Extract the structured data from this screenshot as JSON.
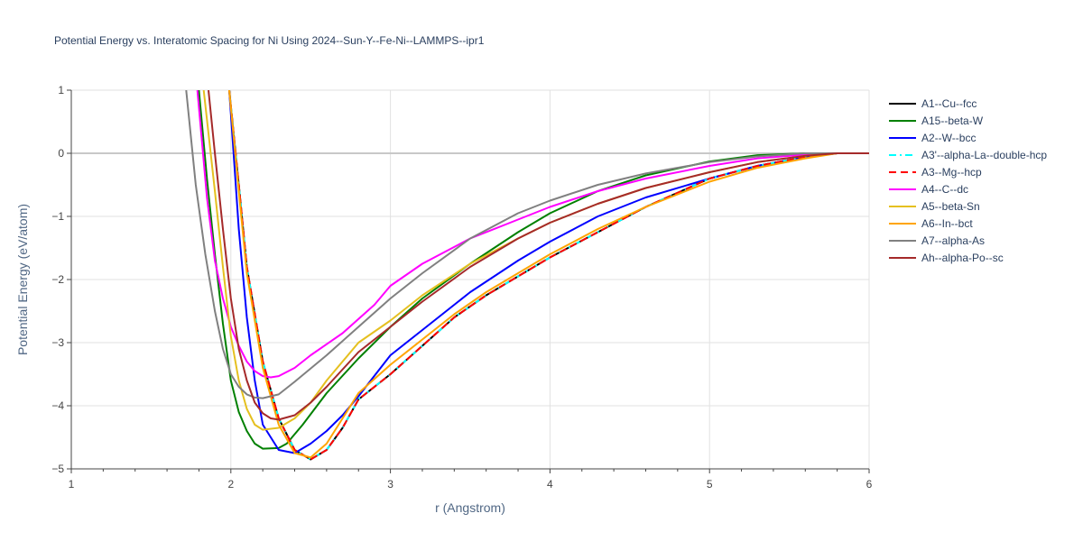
{
  "chart_data": {
    "type": "line",
    "title": "Potential Energy vs. Interatomic Spacing for Ni Using 2024--Sun-Y--Fe-Ni--LAMMPS--ipr1",
    "xlabel": "r (Angstrom)",
    "ylabel": "Potential Energy (eV/atom)",
    "xlim": [
      1,
      6
    ],
    "ylim": [
      -5,
      1
    ],
    "xticks": [
      1,
      2,
      3,
      4,
      5,
      6
    ],
    "yticks": [
      1,
      0,
      -1,
      -2,
      -3,
      -4,
      -5
    ],
    "ytick_labels": [
      "1",
      "0",
      "−1",
      "−2",
      "−3",
      "−4",
      "−5"
    ],
    "grid": true,
    "legend_position": "right",
    "series": [
      {
        "name": "A1--Cu--fcc",
        "color": "#000000",
        "dash": "solid",
        "x": [
          1.99,
          2.05,
          2.1,
          2.2,
          2.3,
          2.4,
          2.5,
          2.6,
          2.7,
          2.8,
          3.0,
          3.2,
          3.4,
          3.6,
          3.8,
          4.0,
          4.3,
          4.6,
          5.0,
          5.3,
          5.6,
          5.8,
          6.0
        ],
        "y": [
          1.0,
          -0.5,
          -1.8,
          -3.3,
          -4.2,
          -4.7,
          -4.85,
          -4.7,
          -4.35,
          -3.9,
          -3.5,
          -3.05,
          -2.6,
          -2.25,
          -1.95,
          -1.65,
          -1.25,
          -0.85,
          -0.4,
          -0.2,
          -0.06,
          0.0,
          0.0
        ]
      },
      {
        "name": "A15--beta-W",
        "color": "#008000",
        "dash": "solid",
        "x": [
          1.8,
          1.85,
          1.9,
          1.95,
          2.0,
          2.05,
          2.1,
          2.15,
          2.2,
          2.3,
          2.35,
          2.45,
          2.6,
          2.8,
          3.0,
          3.2,
          3.5,
          3.8,
          4.0,
          4.3,
          4.6,
          5.0,
          5.3,
          5.6,
          5.8,
          6.0
        ],
        "y": [
          1.0,
          -0.4,
          -1.6,
          -2.7,
          -3.6,
          -4.1,
          -4.4,
          -4.6,
          -4.68,
          -4.67,
          -4.6,
          -4.3,
          -3.8,
          -3.25,
          -2.75,
          -2.3,
          -1.75,
          -1.25,
          -0.95,
          -0.6,
          -0.35,
          -0.13,
          -0.03,
          0.0,
          0.0,
          0.0
        ]
      },
      {
        "name": "A2--W--bcc",
        "color": "#0000ff",
        "dash": "solid",
        "x": [
          1.99,
          2.05,
          2.1,
          2.15,
          2.2,
          2.3,
          2.4,
          2.5,
          2.6,
          2.7,
          2.8,
          3.0,
          3.2,
          3.5,
          3.8,
          4.0,
          4.3,
          4.6,
          5.0,
          5.3,
          5.6,
          5.8,
          6.0
        ],
        "y": [
          1.0,
          -1.2,
          -2.6,
          -3.6,
          -4.3,
          -4.7,
          -4.75,
          -4.6,
          -4.4,
          -4.15,
          -3.85,
          -3.2,
          -2.8,
          -2.2,
          -1.7,
          -1.4,
          -1.0,
          -0.7,
          -0.4,
          -0.2,
          -0.06,
          0.0,
          0.0
        ]
      },
      {
        "name": "A3'--alpha-La--double-hcp",
        "color": "#00ffff",
        "dash": "dashdot",
        "x": [
          1.99,
          2.05,
          2.1,
          2.2,
          2.3,
          2.4,
          2.5,
          2.6,
          2.7,
          2.8,
          3.0,
          3.2,
          3.4,
          3.6,
          3.8,
          4.0,
          4.3,
          4.6,
          5.0,
          5.3,
          5.6,
          5.8,
          6.0
        ],
        "y": [
          1.0,
          -0.5,
          -1.8,
          -3.3,
          -4.2,
          -4.7,
          -4.85,
          -4.7,
          -4.35,
          -3.9,
          -3.5,
          -3.05,
          -2.6,
          -2.25,
          -1.95,
          -1.65,
          -1.25,
          -0.85,
          -0.4,
          -0.2,
          -0.06,
          0.0,
          0.0
        ]
      },
      {
        "name": "A3--Mg--hcp",
        "color": "#ff0000",
        "dash": "dash",
        "x": [
          1.99,
          2.05,
          2.1,
          2.2,
          2.3,
          2.4,
          2.5,
          2.6,
          2.7,
          2.8,
          3.0,
          3.2,
          3.4,
          3.6,
          3.8,
          4.0,
          4.3,
          4.6,
          5.0,
          5.3,
          5.6,
          5.8,
          6.0
        ],
        "y": [
          1.0,
          -0.5,
          -1.8,
          -3.3,
          -4.2,
          -4.7,
          -4.85,
          -4.7,
          -4.35,
          -3.9,
          -3.5,
          -3.05,
          -2.6,
          -2.25,
          -1.95,
          -1.65,
          -1.25,
          -0.85,
          -0.4,
          -0.2,
          -0.06,
          0.0,
          0.0
        ]
      },
      {
        "name": "A4--C--dc",
        "color": "#ff00ff",
        "dash": "solid",
        "x": [
          1.79,
          1.85,
          1.9,
          1.95,
          2.0,
          2.05,
          2.1,
          2.15,
          2.2,
          2.25,
          2.3,
          2.4,
          2.5,
          2.7,
          2.9,
          3.0,
          3.2,
          3.5,
          3.8,
          4.0,
          4.3,
          4.6,
          5.0,
          5.3,
          5.6,
          5.8,
          6.0
        ],
        "y": [
          1.0,
          -0.7,
          -1.7,
          -2.3,
          -2.75,
          -3.05,
          -3.3,
          -3.45,
          -3.53,
          -3.55,
          -3.53,
          -3.4,
          -3.2,
          -2.85,
          -2.4,
          -2.1,
          -1.75,
          -1.35,
          -1.05,
          -0.85,
          -0.6,
          -0.4,
          -0.2,
          -0.08,
          -0.02,
          0.0,
          0.0
        ]
      },
      {
        "name": "A5--beta-Sn",
        "color": "#e5c020",
        "dash": "solid",
        "x": [
          1.83,
          1.9,
          1.95,
          2.0,
          2.05,
          2.1,
          2.15,
          2.2,
          2.3,
          2.4,
          2.5,
          2.6,
          2.8,
          3.0,
          3.2,
          3.5,
          3.8,
          4.0,
          4.3,
          4.6,
          5.0,
          5.3,
          5.6,
          5.8,
          6.0
        ],
        "y": [
          1.0,
          -0.6,
          -1.8,
          -2.9,
          -3.6,
          -4.05,
          -4.3,
          -4.38,
          -4.35,
          -4.2,
          -3.95,
          -3.6,
          -3.0,
          -2.65,
          -2.25,
          -1.75,
          -1.35,
          -1.1,
          -0.8,
          -0.55,
          -0.3,
          -0.14,
          -0.04,
          0.0,
          0.0
        ]
      },
      {
        "name": "A6--In--bct",
        "color": "#ffa500",
        "dash": "solid",
        "x": [
          1.99,
          2.05,
          2.1,
          2.2,
          2.3,
          2.4,
          2.5,
          2.6,
          2.7,
          2.8,
          3.0,
          3.2,
          3.4,
          3.6,
          3.8,
          4.0,
          4.3,
          4.6,
          5.0,
          5.3,
          5.6,
          5.8,
          6.0
        ],
        "y": [
          1.0,
          -0.6,
          -1.9,
          -3.4,
          -4.3,
          -4.75,
          -4.82,
          -4.6,
          -4.2,
          -3.8,
          -3.35,
          -2.95,
          -2.55,
          -2.2,
          -1.9,
          -1.6,
          -1.2,
          -0.85,
          -0.45,
          -0.23,
          -0.08,
          0.0,
          0.0
        ]
      },
      {
        "name": "A7--alpha-As",
        "color": "#808080",
        "dash": "solid",
        "x": [
          1.72,
          1.78,
          1.84,
          1.9,
          1.95,
          2.0,
          2.05,
          2.1,
          2.15,
          2.2,
          2.3,
          2.4,
          2.6,
          2.8,
          3.0,
          3.2,
          3.5,
          3.8,
          4.0,
          4.3,
          4.6,
          5.0,
          5.3,
          5.6,
          5.8,
          6.0
        ],
        "y": [
          1.0,
          -0.5,
          -1.6,
          -2.5,
          -3.1,
          -3.5,
          -3.7,
          -3.82,
          -3.87,
          -3.88,
          -3.82,
          -3.62,
          -3.2,
          -2.75,
          -2.3,
          -1.9,
          -1.35,
          -0.95,
          -0.75,
          -0.5,
          -0.32,
          -0.14,
          -0.05,
          0.0,
          0.0,
          0.0
        ]
      },
      {
        "name": "Ah--alpha-Po--sc",
        "color": "#a52a2a",
        "dash": "solid",
        "x": [
          1.86,
          1.9,
          1.95,
          2.0,
          2.05,
          2.1,
          2.15,
          2.2,
          2.25,
          2.3,
          2.4,
          2.5,
          2.6,
          2.8,
          3.0,
          3.2,
          3.5,
          3.8,
          4.0,
          4.3,
          4.6,
          5.0,
          5.3,
          5.6,
          5.8,
          6.0
        ],
        "y": [
          1.0,
          0.0,
          -1.2,
          -2.3,
          -3.1,
          -3.6,
          -3.95,
          -4.12,
          -4.2,
          -4.22,
          -4.15,
          -3.95,
          -3.7,
          -3.15,
          -2.75,
          -2.35,
          -1.8,
          -1.35,
          -1.1,
          -0.8,
          -0.55,
          -0.3,
          -0.14,
          -0.04,
          0.0,
          0.0
        ]
      }
    ]
  }
}
